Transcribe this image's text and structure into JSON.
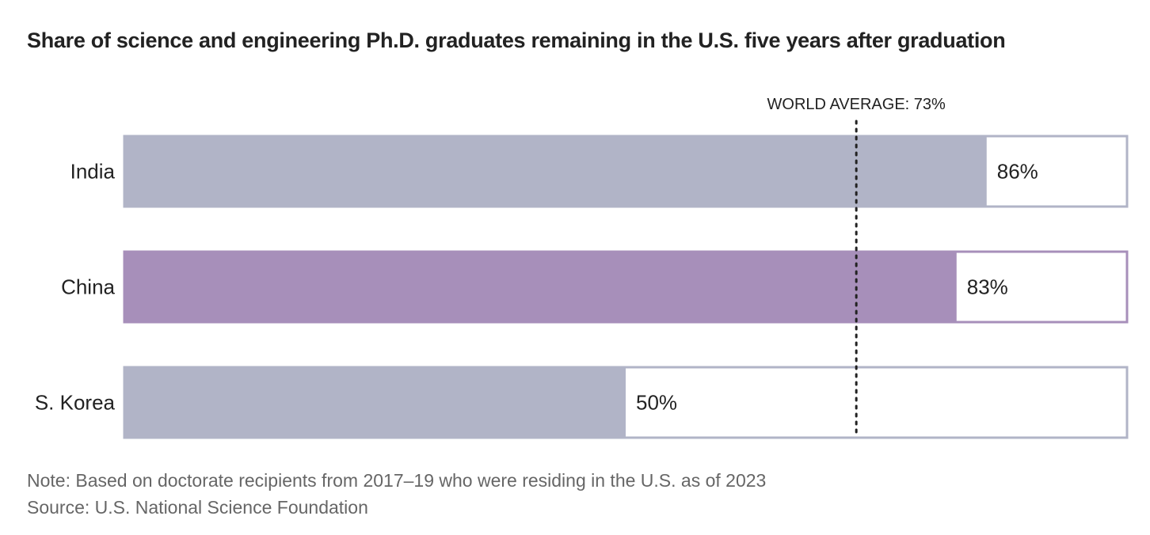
{
  "title": "Share of science and engineering Ph.D. graduates remaining in the U.S. five years after graduation",
  "chart_data": {
    "type": "bar",
    "orientation": "horizontal",
    "title": "Share of science and engineering Ph.D. graduates remaining in the U.S. five years after graduation",
    "categories": [
      "India",
      "China",
      "S. Korea"
    ],
    "values": [
      86,
      83,
      50
    ],
    "value_labels": [
      "86%",
      "83%",
      "50%"
    ],
    "highlight": [
      "default",
      "highlight",
      "default"
    ],
    "xlim": [
      0,
      100
    ],
    "xlabel": "",
    "ylabel": "",
    "reference_line": {
      "value": 73,
      "label": "WORLD AVERAGE: 73%"
    },
    "colors": {
      "default": "#b1b4c7",
      "highlight": "#a78fba",
      "track_border_default": "#b1b4c7",
      "track_border_highlight": "#a78fba",
      "text": "#222222"
    }
  },
  "footer": {
    "note": "Note: Based on doctorate recipients from 2017–19 who were residing in the U.S. as of 2023",
    "source": "Source: U.S. National Science Foundation"
  }
}
